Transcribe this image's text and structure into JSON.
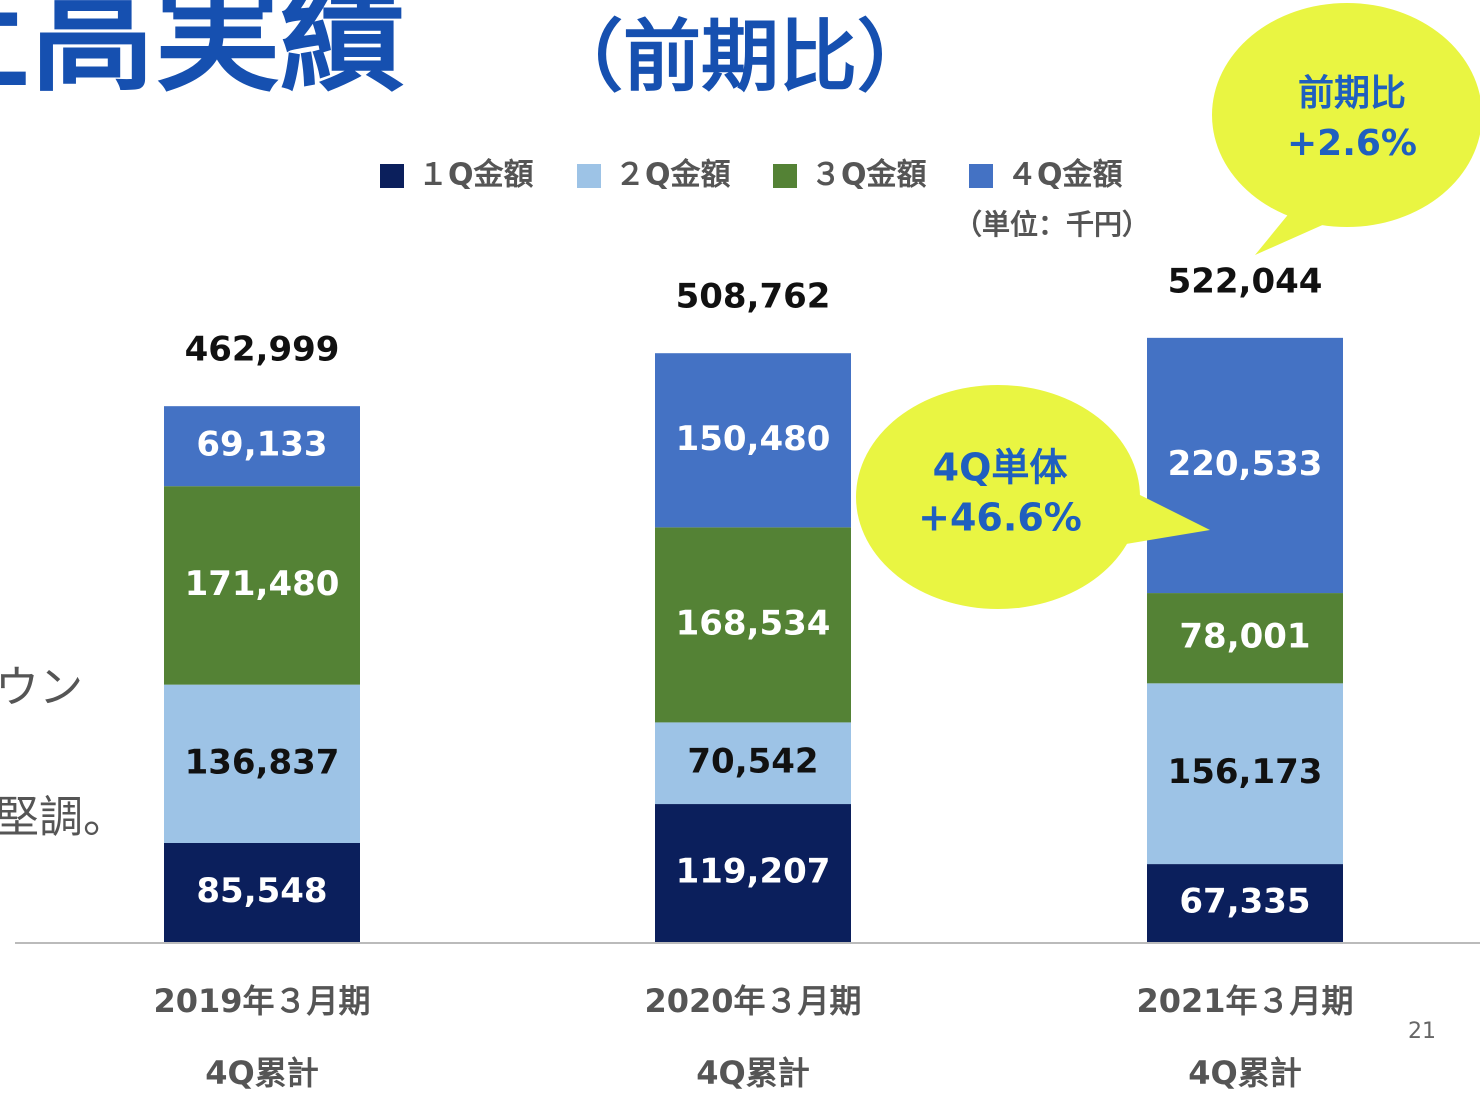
{
  "title": "上高実績",
  "title_suffix": "（前期比）",
  "side_text": [
    "ウン",
    "堅調。"
  ],
  "page_number": "21",
  "chart_data": {
    "type": "stacked-bar",
    "categories": [
      "2019年３月期",
      "2020年３月期",
      "2021年３月期"
    ],
    "category_sublabels": [
      "4Q累計",
      "4Q累計",
      "4Q累計"
    ],
    "unit_label": "（単位：千円）",
    "ylim": [
      0,
      600000
    ],
    "series": [
      {
        "name": "１Q金額",
        "color": "#0b1f5c",
        "label_color": "#ffffff",
        "values": [
          85548,
          119207,
          67335
        ],
        "value_labels": [
          "85,548",
          "119,207",
          "67,335"
        ]
      },
      {
        "name": "２Q金額",
        "color": "#9dc3e6",
        "label_color": "#111111",
        "values": [
          136837,
          70542,
          156173
        ],
        "value_labels": [
          "136,837",
          "70,542",
          "156,173"
        ]
      },
      {
        "name": "３Q金額",
        "color": "#548235",
        "label_color": "#ffffff",
        "values": [
          171480,
          168534,
          78001
        ],
        "value_labels": [
          "171,480",
          "168,534",
          "78,001"
        ]
      },
      {
        "name": "４Q金額",
        "color": "#4472c4",
        "label_color": "#ffffff",
        "values": [
          69133,
          150480,
          220533
        ],
        "value_labels": [
          "69,133",
          "150,480",
          "220,533"
        ]
      }
    ],
    "totals": [
      462999,
      508762,
      522044
    ],
    "total_labels": [
      "462,999",
      "508,762",
      "522,044"
    ],
    "callouts": [
      {
        "lines": [
          "前期比",
          "+2.6%"
        ]
      },
      {
        "lines": [
          "4Q単体",
          "+46.6%"
        ]
      }
    ]
  }
}
